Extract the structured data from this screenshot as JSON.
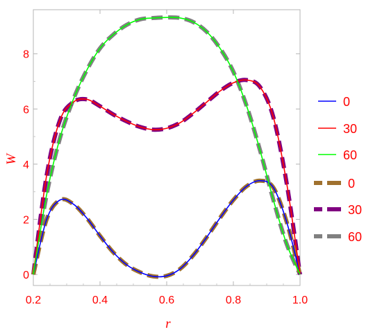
{
  "chart_data": {
    "type": "line",
    "title": "",
    "xlabel": "r",
    "ylabel": "W",
    "xlim": [
      0.2,
      1.0
    ],
    "ylim": [
      -0.4,
      9.6
    ],
    "x_ticks": [
      0.2,
      0.4,
      0.6,
      0.8,
      1.0
    ],
    "x_tick_labels": [
      "0.2",
      "0.4",
      "0.6",
      "0.8",
      "1.0"
    ],
    "y_ticks": [
      0,
      2,
      4,
      6,
      8
    ],
    "y_tick_labels": [
      "0",
      "2",
      "4",
      "6",
      "8"
    ],
    "grid": false,
    "legend_position": "right",
    "label_color": "#ff0000",
    "series": [
      {
        "name": "0",
        "color": "#0000ff",
        "style": "solid",
        "x": [
          0.2,
          0.24,
          0.28,
          0.32,
          0.36,
          0.4,
          0.44,
          0.48,
          0.52,
          0.56,
          0.6,
          0.64,
          0.68,
          0.72,
          0.76,
          0.8,
          0.84,
          0.88,
          0.92,
          0.96,
          1.0
        ],
        "y": [
          0.0,
          2.0,
          2.7,
          2.55,
          2.05,
          1.4,
          0.8,
          0.35,
          0.08,
          -0.07,
          -0.05,
          0.2,
          0.7,
          1.35,
          2.05,
          2.7,
          3.2,
          3.4,
          3.15,
          1.9,
          0.0
        ]
      },
      {
        "name": "30",
        "color": "#ff0000",
        "style": "solid",
        "x": [
          0.2,
          0.24,
          0.28,
          0.32,
          0.36,
          0.4,
          0.44,
          0.48,
          0.52,
          0.56,
          0.6,
          0.64,
          0.68,
          0.72,
          0.76,
          0.8,
          0.84,
          0.88,
          0.92,
          0.96,
          1.0
        ],
        "y": [
          0.0,
          3.6,
          5.6,
          6.25,
          6.35,
          6.1,
          5.8,
          5.55,
          5.35,
          5.25,
          5.3,
          5.5,
          5.85,
          6.25,
          6.65,
          6.95,
          7.05,
          6.8,
          5.7,
          3.3,
          0.0
        ]
      },
      {
        "name": "60",
        "color": "#00ff00",
        "style": "solid",
        "x": [
          0.2,
          0.24,
          0.28,
          0.32,
          0.36,
          0.4,
          0.44,
          0.48,
          0.52,
          0.56,
          0.6,
          0.64,
          0.68,
          0.72,
          0.76,
          0.8,
          0.84,
          0.88,
          0.92,
          0.96,
          1.0
        ],
        "y": [
          0.0,
          2.9,
          4.95,
          6.35,
          7.4,
          8.2,
          8.7,
          9.05,
          9.25,
          9.3,
          9.32,
          9.3,
          9.15,
          8.8,
          8.2,
          7.35,
          6.1,
          4.5,
          2.7,
          1.1,
          0.0
        ]
      },
      {
        "name": "0",
        "color": "#a0712e",
        "style": "dashed",
        "x": [
          0.2,
          0.24,
          0.28,
          0.32,
          0.36,
          0.4,
          0.44,
          0.48,
          0.52,
          0.56,
          0.6,
          0.64,
          0.68,
          0.72,
          0.76,
          0.8,
          0.84,
          0.88,
          0.92,
          0.96,
          1.0
        ],
        "y": [
          0.0,
          2.0,
          2.7,
          2.55,
          2.05,
          1.4,
          0.8,
          0.35,
          0.08,
          -0.07,
          -0.05,
          0.2,
          0.7,
          1.35,
          2.05,
          2.7,
          3.2,
          3.4,
          3.15,
          1.9,
          0.0
        ]
      },
      {
        "name": "30",
        "color": "#800080",
        "style": "dashed",
        "x": [
          0.2,
          0.24,
          0.28,
          0.32,
          0.36,
          0.4,
          0.44,
          0.48,
          0.52,
          0.56,
          0.6,
          0.64,
          0.68,
          0.72,
          0.76,
          0.8,
          0.84,
          0.88,
          0.92,
          0.96,
          1.0
        ],
        "y": [
          0.0,
          3.6,
          5.6,
          6.25,
          6.35,
          6.1,
          5.8,
          5.55,
          5.35,
          5.25,
          5.3,
          5.5,
          5.85,
          6.25,
          6.65,
          6.95,
          7.05,
          6.8,
          5.7,
          3.3,
          0.0
        ]
      },
      {
        "name": "60",
        "color": "#808080",
        "style": "dashed",
        "x": [
          0.2,
          0.24,
          0.28,
          0.32,
          0.36,
          0.4,
          0.44,
          0.48,
          0.52,
          0.56,
          0.6,
          0.64,
          0.68,
          0.72,
          0.76,
          0.8,
          0.84,
          0.88,
          0.92,
          0.96,
          1.0
        ],
        "y": [
          0.0,
          2.9,
          4.95,
          6.35,
          7.4,
          8.2,
          8.7,
          9.05,
          9.25,
          9.3,
          9.32,
          9.3,
          9.15,
          8.8,
          8.2,
          7.35,
          6.1,
          4.5,
          2.7,
          1.1,
          0.0
        ]
      }
    ]
  }
}
